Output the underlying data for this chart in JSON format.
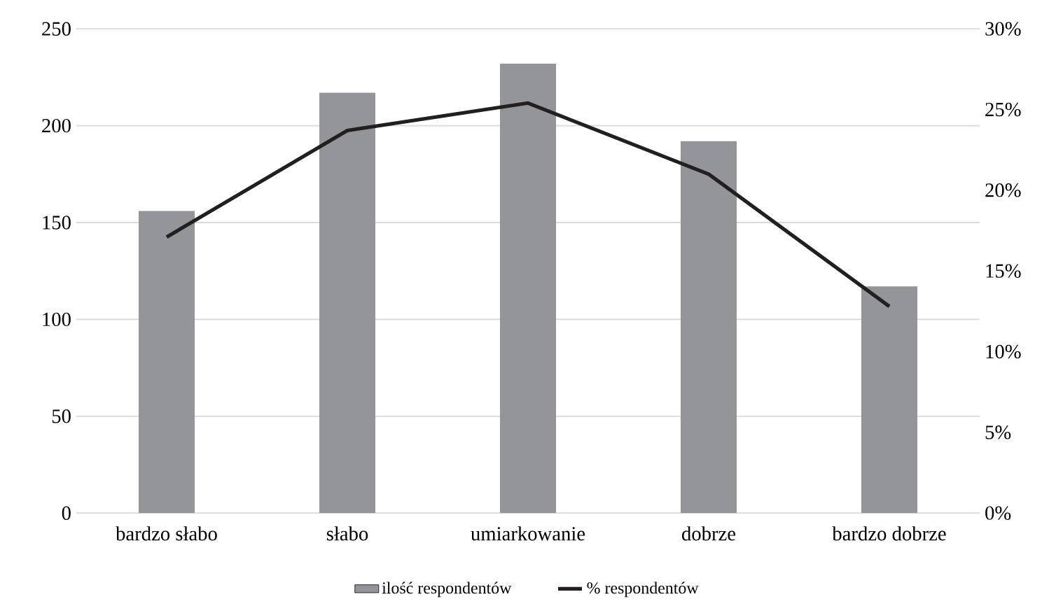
{
  "chart_data": {
    "type": "bar",
    "categories": [
      "bardzo słabo",
      "słabo",
      "umiarkowanie",
      "dobrze",
      "bardzo dobrze"
    ],
    "series": [
      {
        "name": "ilość respondentów",
        "color": "#939598",
        "values": [
          156,
          217,
          232,
          192,
          117
        ]
      },
      {
        "name": "% respondentów",
        "type": "line",
        "axis": "y2",
        "color": "#231f20",
        "values": [
          17.1,
          23.7,
          25.4,
          21.0,
          12.8
        ]
      }
    ],
    "ylim": [
      0,
      250
    ],
    "yticks": [
      0,
      50,
      100,
      150,
      200,
      250
    ],
    "y2lim": [
      0,
      30
    ],
    "y2ticks": [
      {
        "value": 0,
        "label": "0%"
      },
      {
        "value": 5,
        "label": "5%"
      },
      {
        "value": 10,
        "label": "10%"
      },
      {
        "value": 15,
        "label": "15%"
      },
      {
        "value": 20,
        "label": "20%"
      },
      {
        "value": 25,
        "label": "25%"
      },
      {
        "value": 30,
        "label": "30%"
      }
    ],
    "grid": "y",
    "legend": "bottom",
    "marker": "none"
  }
}
